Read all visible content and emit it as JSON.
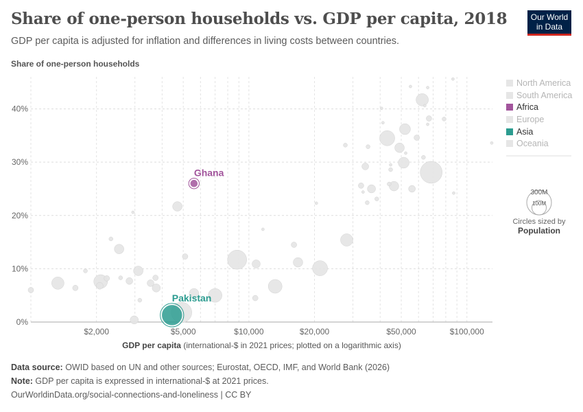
{
  "header": {
    "title": "Share of one-person households vs. GDP per capita, 2018",
    "subtitle": "GDP per capita is adjusted for inflation and differences in living costs between countries.",
    "logo": "Our World in Data"
  },
  "chart_data": {
    "type": "scatter",
    "ylabel": "Share of one-person households",
    "xlabel_bold": "GDP per capita",
    "xlabel_rest": " (international-$ in 2021 prices; plotted on a logarithmic axis)",
    "xscale": "log",
    "xlim": [
      1000,
      131000
    ],
    "ylim": [
      0,
      46
    ],
    "xticks": [
      {
        "v": 2000,
        "label": "$2,000"
      },
      {
        "v": 5000,
        "label": "$5,000"
      },
      {
        "v": 10000,
        "label": "$10,000"
      },
      {
        "v": 20000,
        "label": "$20,000"
      },
      {
        "v": 50000,
        "label": "$50,000"
      },
      {
        "v": 100000,
        "label": "$100,000"
      }
    ],
    "yticks": [
      {
        "v": 0,
        "label": "0%"
      },
      {
        "v": 10,
        "label": "10%"
      },
      {
        "v": 20,
        "label": "20%"
      },
      {
        "v": 30,
        "label": "30%"
      },
      {
        "v": 40,
        "label": "40%"
      }
    ],
    "grid": true,
    "size_legend": {
      "large": "300M",
      "small": "100M",
      "note": "Circles sized by",
      "variable": "Population"
    },
    "legend": [
      {
        "name": "North America",
        "color": "#e6e6e6",
        "active": false
      },
      {
        "name": "South America",
        "color": "#e6e6e6",
        "active": false
      },
      {
        "name": "Africa",
        "color": "#a2559c",
        "active": true
      },
      {
        "name": "Europe",
        "color": "#e6e6e6",
        "active": false
      },
      {
        "name": "Asia",
        "color": "#2c9c90",
        "active": true
      },
      {
        "name": "Oceania",
        "color": "#e6e6e6",
        "active": false
      }
    ],
    "highlighted": [
      {
        "label": "Ghana",
        "gdp": 5600,
        "share": 26.0,
        "pop": 30,
        "color": "#a2559c"
      },
      {
        "label": "Pakistan",
        "gdp": 4440,
        "share": 1.3,
        "pop": 212,
        "color": "#2c9c90"
      }
    ],
    "points": [
      [
        1000,
        6.0,
        15
      ],
      [
        1330,
        7.3,
        75
      ],
      [
        1600,
        6.4,
        15
      ],
      [
        1780,
        9.6,
        8
      ],
      [
        2090,
        7.6,
        93
      ],
      [
        2070,
        6.8,
        23
      ],
      [
        2230,
        8.2,
        15
      ],
      [
        2330,
        15.6,
        8
      ],
      [
        2540,
        13.7,
        45
      ],
      [
        2580,
        8.3,
        8
      ],
      [
        2830,
        7.7,
        23
      ],
      [
        2940,
        20.6,
        4
      ],
      [
        2980,
        0.4,
        33
      ],
      [
        3110,
        9.6,
        45
      ],
      [
        3160,
        4.1,
        8
      ],
      [
        3540,
        7.3,
        23
      ],
      [
        3730,
        8.3,
        15
      ],
      [
        3760,
        6.4,
        33
      ],
      [
        4700,
        21.7,
        45
      ],
      [
        5100,
        12.3,
        15
      ],
      [
        5600,
        5.4,
        45
      ],
      [
        4910,
        1.8,
        208
      ],
      [
        7000,
        5.0,
        93
      ],
      [
        8830,
        11.7,
        181
      ],
      [
        10800,
        10.9,
        33
      ],
      [
        10700,
        4.5,
        15
      ],
      [
        11600,
        17.4,
        4
      ],
      [
        13200,
        6.7,
        93
      ],
      [
        16100,
        14.5,
        15
      ],
      [
        16800,
        11.2,
        45
      ],
      [
        20400,
        22.3,
        4
      ],
      [
        21200,
        10.1,
        112
      ],
      [
        28100,
        15.4,
        75
      ],
      [
        27700,
        33.2,
        8
      ],
      [
        34200,
        29.2,
        23
      ],
      [
        33400,
        24.4,
        4
      ],
      [
        34900,
        22.4,
        8
      ],
      [
        32700,
        25.6,
        15
      ],
      [
        35200,
        32.9,
        8
      ],
      [
        36500,
        25.0,
        33
      ],
      [
        38600,
        23.1,
        8
      ],
      [
        40600,
        40.1,
        4
      ],
      [
        41200,
        37.4,
        4
      ],
      [
        43100,
        34.5,
        112
      ],
      [
        44000,
        25.9,
        8
      ],
      [
        44700,
        29.5,
        4
      ],
      [
        44700,
        28.6,
        8
      ],
      [
        46300,
        25.5,
        45
      ],
      [
        49100,
        32.7,
        45
      ],
      [
        51300,
        29.9,
        59
      ],
      [
        52000,
        36.2,
        59
      ],
      [
        52400,
        31.7,
        4
      ],
      [
        56000,
        25.0,
        23
      ],
      [
        55100,
        44.2,
        4
      ],
      [
        58900,
        34.6,
        15
      ],
      [
        62400,
        41.7,
        75
      ],
      [
        63200,
        30.9,
        8
      ],
      [
        64100,
        40.6,
        4
      ],
      [
        66100,
        44.0,
        4
      ],
      [
        67000,
        38.2,
        15
      ],
      [
        68600,
        28.1,
        237
      ],
      [
        66100,
        37.1,
        4
      ],
      [
        78600,
        38.1,
        8
      ],
      [
        86300,
        45.6,
        4
      ],
      [
        87000,
        24.2,
        4
      ],
      [
        130000,
        33.6,
        4
      ]
    ]
  },
  "footer": {
    "source_label": "Data source:",
    "source": " OWID based on UN and other sources; Eurostat, OECD, IMF, and World Bank (2026)",
    "note_label": "Note:",
    "note": " GDP per capita is expressed in international-$ at 2021 prices.",
    "link": "OurWorldinData.org/social-connections-and-loneliness | CC BY"
  }
}
